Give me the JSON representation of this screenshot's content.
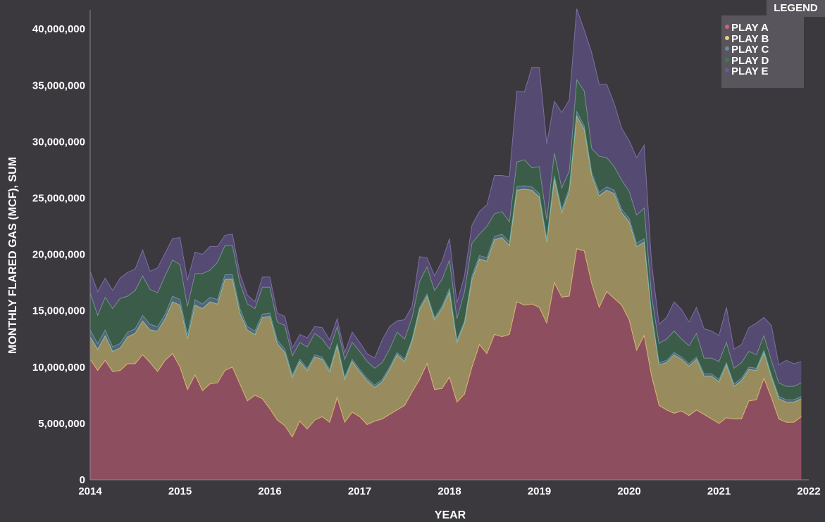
{
  "chart_data": {
    "type": "area",
    "stacked": true,
    "xlabel": "YEAR",
    "ylabel": "MONTHLY FLARED GAS (MCF), SUM",
    "x_ticks": [
      "2014",
      "2015",
      "2016",
      "2017",
      "2018",
      "2019",
      "2020",
      "2021",
      "2022"
    ],
    "y_ticks": [
      "0",
      "5,000,000",
      "10,000,000",
      "15,000,000",
      "20,000,000",
      "25,000,000",
      "30,000,000",
      "35,000,000",
      "40,000,000"
    ],
    "ylim": [
      0,
      41700000
    ],
    "xlim": [
      "2014-01",
      "2022-01"
    ],
    "legend": {
      "title": "LEGEND",
      "position": "top-right"
    },
    "months": [
      "2014-01",
      "2014-02",
      "2014-03",
      "2014-04",
      "2014-05",
      "2014-06",
      "2014-07",
      "2014-08",
      "2014-09",
      "2014-10",
      "2014-11",
      "2014-12",
      "2015-01",
      "2015-02",
      "2015-03",
      "2015-04",
      "2015-05",
      "2015-06",
      "2015-07",
      "2015-08",
      "2015-09",
      "2015-10",
      "2015-11",
      "2015-12",
      "2016-01",
      "2016-02",
      "2016-03",
      "2016-04",
      "2016-05",
      "2016-06",
      "2016-07",
      "2016-08",
      "2016-09",
      "2016-10",
      "2016-11",
      "2016-12",
      "2017-01",
      "2017-02",
      "2017-03",
      "2017-04",
      "2017-05",
      "2017-06",
      "2017-07",
      "2017-08",
      "2017-09",
      "2017-10",
      "2017-11",
      "2017-12",
      "2018-01",
      "2018-02",
      "2018-03",
      "2018-04",
      "2018-05",
      "2018-06",
      "2018-07",
      "2018-08",
      "2018-09",
      "2018-10",
      "2018-11",
      "2018-12",
      "2019-01",
      "2019-02",
      "2019-03",
      "2019-04",
      "2019-05",
      "2019-06",
      "2019-07",
      "2019-08",
      "2019-09",
      "2019-10",
      "2019-11",
      "2019-12",
      "2020-01",
      "2020-02",
      "2020-03",
      "2020-04",
      "2020-05",
      "2020-06",
      "2020-07",
      "2020-08",
      "2020-09",
      "2020-10",
      "2020-11",
      "2020-12",
      "2021-01",
      "2021-02",
      "2021-03",
      "2021-04",
      "2021-05",
      "2021-06",
      "2021-07",
      "2021-08",
      "2021-09",
      "2021-10",
      "2021-11",
      "2021-12"
    ],
    "series": [
      {
        "name": "PLAY A",
        "color": "#d1637a",
        "line": "#f0c37a",
        "values": [
          10.7,
          9.7,
          10.6,
          9.6,
          9.7,
          10.3,
          10.3,
          11.1,
          10.4,
          9.6,
          10.6,
          11.2,
          10.0,
          8.0,
          9.3,
          7.9,
          8.5,
          8.6,
          9.7,
          10.0,
          8.5,
          7.0,
          7.5,
          7.2,
          6.3,
          5.3,
          4.8,
          3.8,
          5.2,
          4.5,
          5.3,
          5.6,
          5.1,
          7.3,
          5.1,
          6.0,
          5.6,
          4.9,
          5.2,
          5.4,
          5.8,
          6.2,
          6.6,
          7.8,
          8.9,
          10.3,
          8.0,
          8.1,
          9.1,
          6.9,
          7.6,
          10.0,
          12.0,
          11.2,
          12.9,
          12.7,
          12.9,
          15.8,
          15.5,
          15.6,
          15.3,
          13.9,
          17.5,
          16.2,
          16.3,
          20.5,
          20.3,
          17.4,
          15.3,
          16.7,
          16.1,
          15.5,
          14.2,
          11.5,
          12.8,
          9.2,
          6.6,
          6.2,
          5.9,
          6.1,
          5.7,
          6.2,
          5.8,
          5.4,
          5.0,
          5.5,
          5.4,
          5.4,
          7.0,
          7.1,
          9.0,
          7.3,
          5.4,
          5.1,
          5.1,
          5.6
        ]
      },
      {
        "name": "PLAY B",
        "color": "#e6d178",
        "line": "#9fe0b0",
        "values": [
          2.0,
          1.9,
          2.2,
          1.8,
          2.0,
          2.4,
          2.7,
          3.0,
          2.9,
          3.6,
          3.7,
          4.6,
          5.5,
          4.5,
          6.2,
          7.3,
          7.3,
          7.0,
          8.1,
          7.8,
          6.3,
          6.3,
          5.4,
          7.2,
          8.2,
          6.8,
          6.5,
          5.3,
          5.3,
          5.2,
          5.6,
          5.1,
          4.5,
          4.6,
          3.8,
          4.5,
          4.0,
          3.9,
          3.0,
          3.3,
          4.0,
          4.9,
          3.9,
          4.5,
          6.2,
          6.0,
          6.2,
          7.1,
          7.6,
          5.3,
          6.3,
          7.8,
          7.6,
          8.2,
          8.4,
          8.8,
          7.9,
          9.9,
          10.3,
          10.1,
          9.8,
          7.2,
          9.2,
          7.5,
          9.3,
          11.8,
          10.8,
          9.6,
          9.9,
          9.0,
          9.3,
          8.2,
          8.7,
          9.2,
          8.3,
          5.4,
          3.6,
          4.2,
          5.2,
          4.6,
          4.4,
          4.5,
          3.4,
          3.8,
          3.7,
          4.7,
          2.9,
          3.4,
          2.8,
          2.6,
          2.3,
          1.8,
          1.8,
          1.8,
          1.8,
          1.6
        ]
      },
      {
        "name": "PLAY C",
        "color": "#6a8aa8",
        "line": "#7fb0d0",
        "values": [
          0.6,
          0.5,
          0.5,
          0.4,
          0.4,
          0.4,
          0.4,
          0.5,
          0.5,
          0.4,
          0.4,
          0.5,
          0.5,
          0.4,
          0.5,
          0.4,
          0.4,
          0.4,
          0.4,
          0.4,
          0.4,
          0.3,
          0.3,
          0.3,
          0.3,
          0.3,
          0.3,
          0.2,
          0.2,
          0.2,
          0.2,
          0.2,
          0.2,
          0.2,
          0.2,
          0.2,
          0.2,
          0.2,
          0.2,
          0.2,
          0.2,
          0.2,
          0.2,
          0.2,
          0.2,
          0.2,
          0.2,
          0.2,
          0.3,
          0.2,
          0.2,
          0.3,
          0.3,
          0.3,
          0.3,
          0.3,
          0.3,
          0.3,
          0.3,
          0.3,
          0.3,
          0.3,
          0.3,
          0.3,
          0.3,
          0.4,
          0.3,
          0.3,
          0.3,
          0.3,
          0.3,
          0.3,
          0.3,
          0.3,
          0.3,
          0.2,
          0.2,
          0.2,
          0.2,
          0.2,
          0.2,
          0.2,
          0.2,
          0.2,
          0.2,
          0.2,
          0.2,
          0.2,
          0.2,
          0.2,
          0.2,
          0.2,
          0.2,
          0.2,
          0.2,
          0.2
        ]
      },
      {
        "name": "PLAY D",
        "color": "#3a7a50",
        "line": "#8fb8a0",
        "values": [
          3.3,
          2.5,
          2.9,
          3.4,
          4.0,
          3.2,
          3.4,
          3.5,
          3.1,
          3.0,
          3.4,
          3.2,
          3.1,
          2.5,
          2.3,
          2.7,
          2.4,
          3.3,
          2.6,
          2.6,
          2.3,
          2.0,
          2.0,
          2.4,
          2.3,
          1.6,
          2.1,
          1.7,
          1.5,
          1.9,
          1.9,
          1.6,
          1.8,
          1.5,
          1.6,
          1.5,
          1.6,
          1.5,
          1.5,
          1.5,
          1.6,
          1.8,
          1.8,
          1.9,
          2.3,
          2.4,
          2.4,
          2.4,
          2.5,
          1.9,
          2.6,
          2.9,
          1.9,
          2.8,
          2.0,
          2.0,
          1.8,
          2.2,
          2.3,
          1.7,
          2.4,
          1.7,
          2.0,
          1.9,
          1.5,
          2.8,
          3.1,
          2.1,
          3.2,
          2.6,
          2.1,
          2.6,
          2.4,
          2.5,
          2.7,
          1.5,
          1.7,
          1.9,
          1.9,
          1.6,
          1.6,
          2.1,
          1.4,
          1.4,
          1.6,
          1.8,
          1.4,
          1.4,
          1.4,
          1.2,
          1.3,
          1.3,
          1.2,
          1.2,
          1.2,
          1.2
        ]
      },
      {
        "name": "PLAY E",
        "color": "#6b5a9a",
        "line": "#8a7ab8",
        "values": [
          1.9,
          2.1,
          1.7,
          1.6,
          1.8,
          2.1,
          1.9,
          2.3,
          1.6,
          2.2,
          2.0,
          1.9,
          2.4,
          2.3,
          1.9,
          1.7,
          2.1,
          1.4,
          0.9,
          1.0,
          0.8,
          0.8,
          0.6,
          0.9,
          0.9,
          0.8,
          0.8,
          0.7,
          0.7,
          0.8,
          0.6,
          1.0,
          0.8,
          0.7,
          0.6,
          0.9,
          0.8,
          0.7,
          0.9,
          2.0,
          2.0,
          1.0,
          1.7,
          1.0,
          2.2,
          0.8,
          1.3,
          1.6,
          1.9,
          1.4,
          1.4,
          1.6,
          2.0,
          1.9,
          3.4,
          3.2,
          4.0,
          6.3,
          6.0,
          8.9,
          8.8,
          6.7,
          4.6,
          6.7,
          6.3,
          6.3,
          5.4,
          8.5,
          6.4,
          6.5,
          5.6,
          4.6,
          4.5,
          5.1,
          5.6,
          2.9,
          1.7,
          1.9,
          2.6,
          2.6,
          2.1,
          2.3,
          2.6,
          2.4,
          2.3,
          3.1,
          1.7,
          1.6,
          2.1,
          2.8,
          1.6,
          3.1,
          1.6,
          2.3,
          2.0,
          1.9
        ]
      }
    ],
    "value_unit": "million MCF (values above ×1,000,000)"
  }
}
